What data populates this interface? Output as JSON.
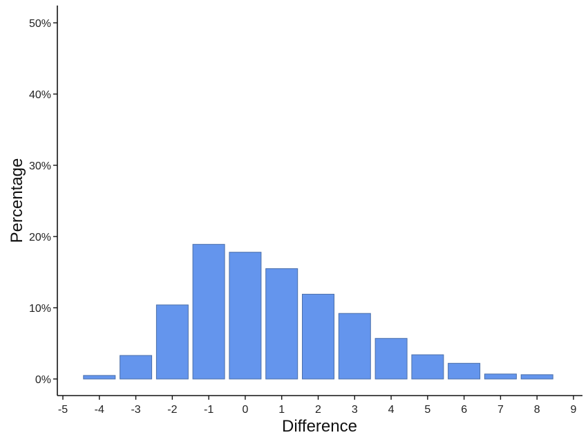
{
  "colors": {
    "bar_fill": "#6495ED",
    "bar_stroke": "#4A6EA8",
    "axis": "#111111",
    "background": "#ffffff"
  },
  "chart_data": {
    "type": "bar",
    "title": "",
    "xlabel": "Difference",
    "ylabel": "Percentage",
    "x": [
      -4,
      -3,
      -2,
      -1,
      0,
      1,
      2,
      3,
      4,
      5,
      6,
      7,
      8
    ],
    "values": [
      0.5,
      3.3,
      10.4,
      18.9,
      17.8,
      15.5,
      11.9,
      9.2,
      5.7,
      3.4,
      2.2,
      0.7,
      0.6
    ],
    "xlim": [
      -5,
      9
    ],
    "ylim": [
      0,
      50
    ],
    "x_ticks": [
      -5,
      -4,
      -3,
      -2,
      -1,
      0,
      1,
      2,
      3,
      4,
      5,
      6,
      7,
      8,
      9
    ],
    "y_ticks": [
      0,
      10,
      20,
      30,
      40,
      50
    ],
    "y_tick_labels": [
      "0%",
      "10%",
      "20%",
      "30%",
      "40%",
      "50%"
    ],
    "x_tick_labels": [
      "-5",
      "-4",
      "-3",
      "-2",
      "-1",
      "0",
      "1",
      "2",
      "3",
      "4",
      "5",
      "6",
      "7",
      "8",
      "9"
    ],
    "grid": false,
    "legend": "none"
  }
}
